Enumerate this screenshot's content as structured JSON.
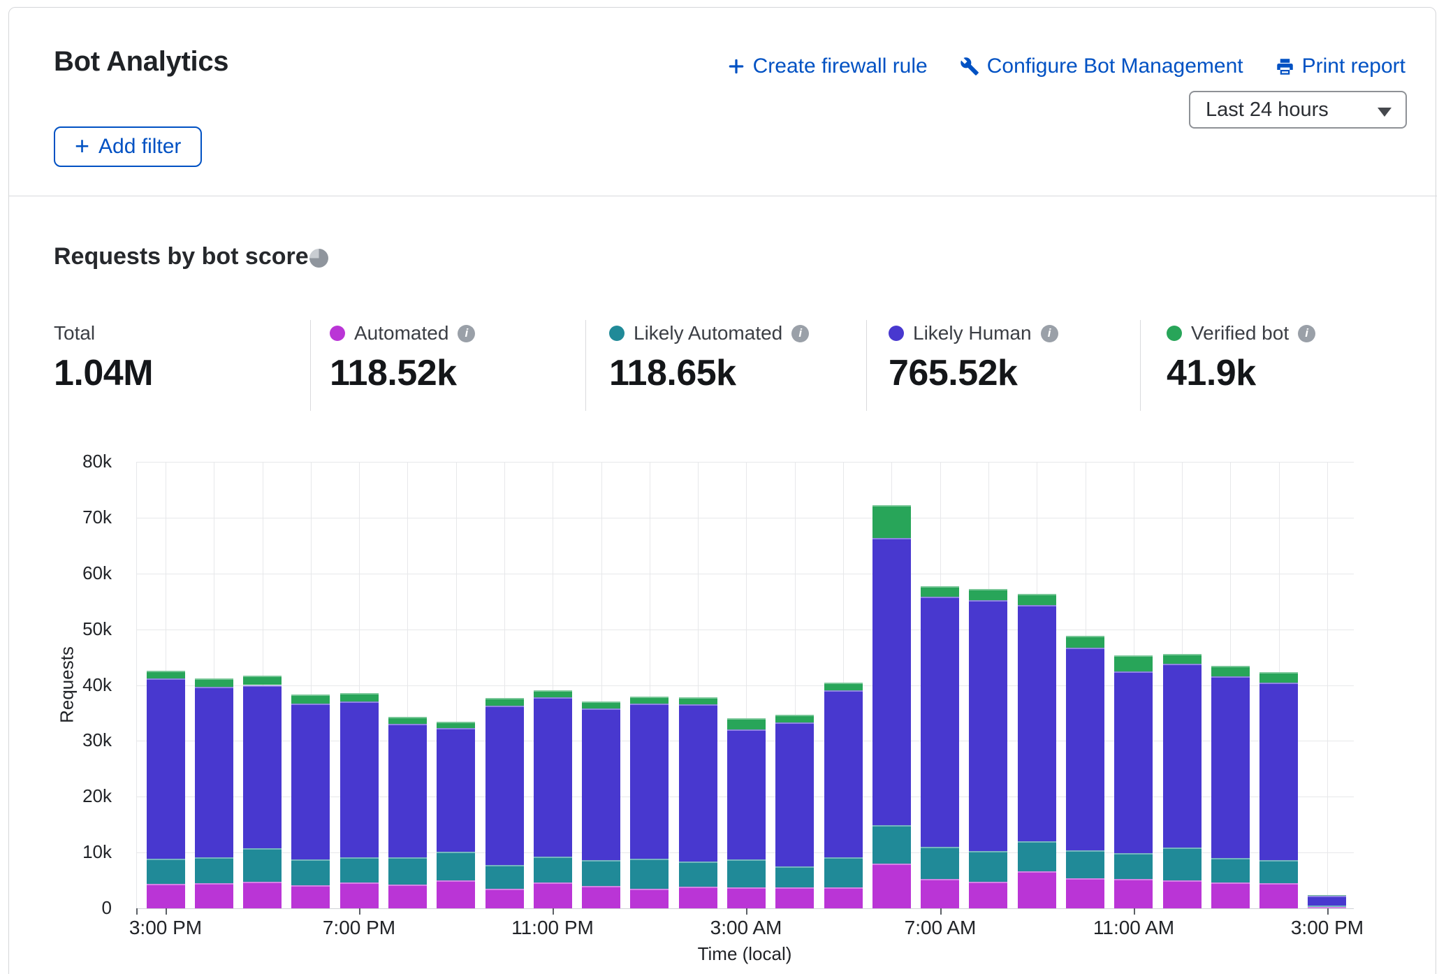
{
  "header": {
    "title": "Bot Analytics",
    "actions": [
      {
        "label": "Create firewall rule",
        "icon": "plus-icon"
      },
      {
        "label": "Configure Bot Management",
        "icon": "wrench-icon"
      },
      {
        "label": "Print report",
        "icon": "printer-icon"
      }
    ],
    "add_filter": "Add filter",
    "time_range": "Last 24 hours"
  },
  "section": {
    "title": "Requests by bot score"
  },
  "colors": {
    "link_blue": "#0051c3",
    "automated": "#ba35d6",
    "likely_automated": "#208a98",
    "likely_human": "#4838cf",
    "verified_bot": "#28a559"
  },
  "stats": [
    {
      "label": "Total",
      "value": "1.04M"
    },
    {
      "label": "Automated",
      "value": "118.52k",
      "color": "#ba35d6",
      "info": true
    },
    {
      "label": "Likely Automated",
      "value": "118.65k",
      "color": "#208a98",
      "info": true
    },
    {
      "label": "Likely Human",
      "value": "765.52k",
      "color": "#4838cf",
      "info": true
    },
    {
      "label": "Verified bot",
      "value": "41.9k",
      "color": "#28a559",
      "info": true
    }
  ],
  "chart_data": {
    "type": "bar",
    "stacked": true,
    "title": "Requests by bot score",
    "xlabel": "Time (local)",
    "ylabel": "Requests",
    "ylim": [
      0,
      80000
    ],
    "grid": true,
    "legend_position": "top",
    "y_ticks": [
      "0",
      "10k",
      "20k",
      "30k",
      "40k",
      "50k",
      "60k",
      "70k",
      "80k"
    ],
    "x_labels": [
      "3:00 PM",
      "",
      "",
      "",
      "7:00 PM",
      "",
      "",
      "",
      "11:00 PM",
      "",
      "",
      "",
      "3:00 AM",
      "",
      "",
      "",
      "7:00 AM",
      "",
      "",
      "",
      "11:00 AM",
      "",
      "",
      "",
      "3:00 PM"
    ],
    "series": [
      {
        "name": "Automated",
        "color": "#ba35d6",
        "values": [
          4400,
          4500,
          4800,
          4100,
          4600,
          4300,
          5000,
          3500,
          4600,
          4000,
          3500,
          3900,
          3800,
          3800,
          3800,
          8000,
          5300,
          4800,
          6600,
          5400,
          5300,
          5000,
          4600,
          4500,
          200
        ]
      },
      {
        "name": "Likely Automated",
        "color": "#208a98",
        "values": [
          4500,
          4600,
          6000,
          4700,
          4500,
          4800,
          5200,
          4300,
          4700,
          4600,
          5400,
          4500,
          5000,
          3700,
          5300,
          6900,
          5700,
          5500,
          5400,
          5000,
          4600,
          5900,
          4400,
          4100,
          350
        ]
      },
      {
        "name": "Likely Human",
        "color": "#4838cf",
        "values": [
          32300,
          30600,
          29200,
          27900,
          28000,
          23900,
          22100,
          28500,
          28500,
          27200,
          27800,
          28100,
          23200,
          25800,
          29900,
          51400,
          44800,
          44900,
          42300,
          36300,
          32500,
          32900,
          32600,
          31800,
          1750
        ]
      },
      {
        "name": "Verified bot",
        "color": "#28a559",
        "values": [
          1400,
          1500,
          1700,
          1600,
          1500,
          1300,
          1100,
          1400,
          1200,
          1300,
          1200,
          1300,
          2000,
          1400,
          1400,
          5900,
          1900,
          2000,
          2100,
          2100,
          2900,
          1800,
          1800,
          1900,
          50
        ]
      }
    ]
  }
}
